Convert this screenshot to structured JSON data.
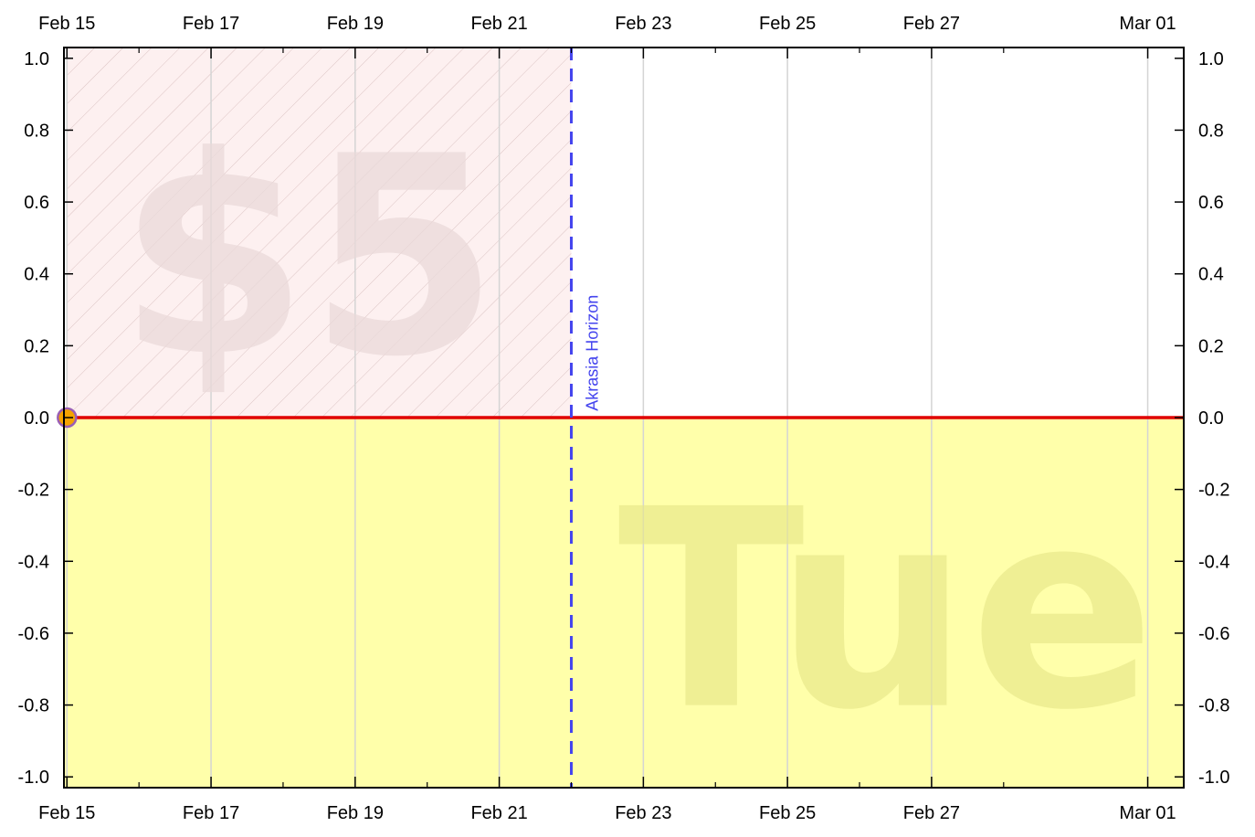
{
  "chart_data": {
    "type": "line",
    "title": "",
    "xlabel": "",
    "ylabel": "",
    "x_axis": {
      "type": "date",
      "range": [
        "2024-02-14T23:00",
        "2024-03-01T12:00"
      ],
      "tick_dates": [
        "2024-02-15",
        "2024-02-17",
        "2024-02-19",
        "2024-02-21",
        "2024-02-23",
        "2024-02-25",
        "2024-02-27",
        "2024-03-01"
      ],
      "tick_labels": [
        "Feb 15",
        "Feb 17",
        "Feb 19",
        "Feb 21",
        "Feb 23",
        "Feb 25",
        "Feb 27",
        "Mar 01"
      ],
      "minor_tick_dates": [
        "2024-02-16",
        "2024-02-18",
        "2024-02-20",
        "2024-02-22",
        "2024-02-24",
        "2024-02-26",
        "2024-02-28"
      ],
      "shown_top_and_bottom": true
    },
    "y_axis": {
      "ylim": [
        -1.03,
        1.03
      ],
      "ticks": [
        1.0,
        0.8,
        0.6,
        0.4,
        0.2,
        0.0,
        -0.2,
        -0.4,
        -0.6,
        -0.8,
        -1.0
      ],
      "tick_labels": [
        "1.0",
        "0.8",
        "0.6",
        "0.4",
        "0.2",
        "0.0",
        "-0.2",
        "-0.4",
        "-0.6",
        "-0.8",
        "-1.0"
      ],
      "shown_left_and_right": true
    },
    "grid": "vertical lines at major x ticks",
    "series": [
      {
        "points": [
          {
            "x": "2024-02-15",
            "y": 0.0
          }
        ],
        "color": "#f5a300",
        "marker": "circle"
      }
    ],
    "bright_red_line": {
      "x": [
        "2024-02-15",
        "2024-03-01T12:00"
      ],
      "y": [
        0.0,
        0.0
      ],
      "color": "#e00000"
    },
    "good_side_region": {
      "y_range": [
        -1.03,
        0.0
      ],
      "color": "#ffffaa"
    },
    "hatched_region": {
      "x_range": [
        "2024-02-15",
        "2024-02-22"
      ],
      "y_range": [
        0.0,
        1.03
      ],
      "color": "#fdf0f0"
    },
    "akrasia_horizon": {
      "x": "2024-02-22",
      "label": "Akrasia Horizon",
      "color": "#4444ee"
    },
    "watermarks": {
      "pledge": "$5",
      "deadline": "Tue"
    },
    "colors": {
      "watermark_pledge": "#ead9d9",
      "watermark_deadline": "#e6e688",
      "grid": "#d4d4d4",
      "marker_stroke": "#9a5fb5"
    }
  }
}
